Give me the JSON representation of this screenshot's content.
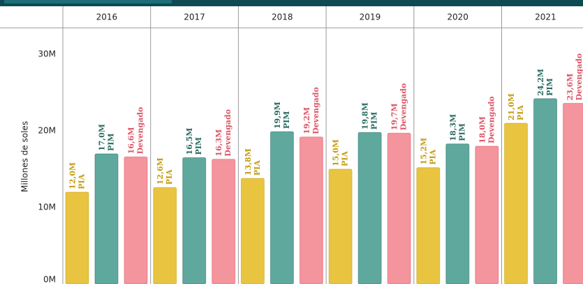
{
  "chart_data": {
    "type": "bar",
    "y_label": "Millones de soles",
    "categories": [
      "2016",
      "2017",
      "2018",
      "2019",
      "2020",
      "2021"
    ],
    "series": [
      {
        "name": "PIA",
        "color": "#e8c440",
        "values": [
          12.0,
          12.6,
          13.8,
          15.0,
          15.2,
          21.0
        ],
        "value_labels": [
          "12,0M",
          "12,6M",
          "13,8M",
          "15,0M",
          "15,2M",
          "21,0M"
        ]
      },
      {
        "name": "PIM",
        "color": "#5fa89e",
        "values": [
          17.0,
          16.5,
          19.9,
          19.8,
          18.3,
          24.2
        ],
        "value_labels": [
          "17,0M",
          "16,5M",
          "19,9M",
          "19,8M",
          "18,3M",
          "24,2M"
        ]
      },
      {
        "name": "Devengado",
        "color": "#f4949c",
        "values": [
          16.6,
          16.3,
          19.2,
          19.7,
          18.0,
          23.6
        ],
        "value_labels": [
          "16,6M",
          "16,3M",
          "19,2M",
          "19,7M",
          "18,0M",
          "23,6M"
        ]
      }
    ],
    "ylim": [
      0,
      30
    ],
    "yticks": [
      {
        "value": 0,
        "label": "0M"
      },
      {
        "value": 10,
        "label": "10M"
      },
      {
        "value": 20,
        "label": "20M"
      },
      {
        "value": 30,
        "label": "30M"
      }
    ],
    "grid": false
  }
}
